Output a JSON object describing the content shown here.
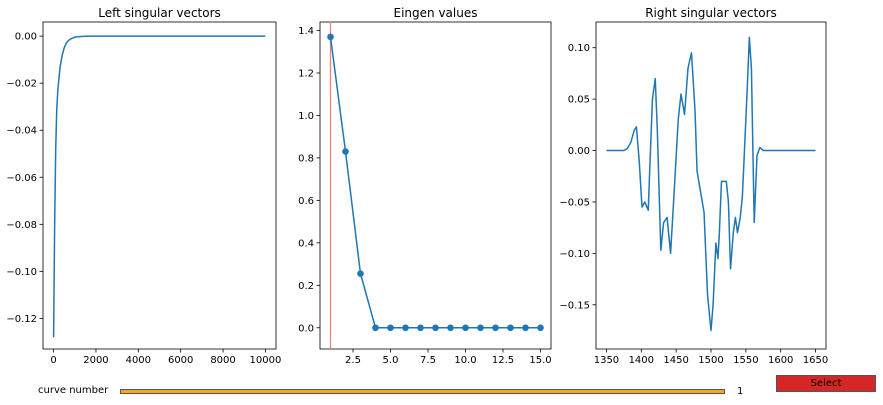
{
  "chart_data": [
    {
      "type": "line",
      "title": "Left singular vectors",
      "xlabel": "",
      "ylabel": "",
      "xlim": [
        -500,
        10500
      ],
      "ylim": [
        -0.133,
        0.006
      ],
      "xticks": [
        0,
        2000,
        4000,
        6000,
        8000,
        10000
      ],
      "xtick_labels": [
        "0",
        "2000",
        "4000",
        "6000",
        "8000",
        "10000"
      ],
      "yticks": [
        0.0,
        -0.02,
        -0.04,
        -0.06,
        -0.08,
        -0.1,
        -0.12
      ],
      "ytick_labels": [
        "0.00",
        "−0.02",
        "−0.04",
        "−0.06",
        "−0.08",
        "−0.10",
        "−0.12"
      ],
      "color": "#1f77b4",
      "series": [
        {
          "x": [
            0,
            50,
            100,
            150,
            200,
            300,
            400,
            500,
            600,
            700,
            800,
            1000,
            1200,
            1500,
            2000,
            3000,
            5000,
            7500,
            10000
          ],
          "y": [
            -0.128,
            -0.08,
            -0.048,
            -0.031,
            -0.023,
            -0.0135,
            -0.0083,
            -0.005,
            -0.003,
            -0.0019,
            -0.0012,
            -0.0005,
            -0.0002,
            -5e-05,
            0,
            0,
            0,
            0,
            0
          ]
        }
      ]
    },
    {
      "type": "line",
      "title": "Eingen values",
      "xlabel": "",
      "ylabel": "",
      "xlim": [
        0.3,
        15.7
      ],
      "ylim": [
        -0.1,
        1.44
      ],
      "xticks": [
        2.5,
        5.0,
        7.5,
        10.0,
        12.5,
        15.0
      ],
      "xtick_labels": [
        "2.5",
        "5.0",
        "7.5",
        "10.0",
        "12.5",
        "15.0"
      ],
      "yticks": [
        0.0,
        0.2,
        0.4,
        0.6,
        0.8,
        1.0,
        1.2,
        1.4
      ],
      "ytick_labels": [
        "0.0",
        "0.2",
        "0.4",
        "0.6",
        "0.8",
        "1.0",
        "1.2",
        "1.4"
      ],
      "color": "#1f77b4",
      "marker": "circle",
      "vline": {
        "x": 1,
        "color": "#f08080"
      },
      "series": [
        {
          "x": [
            1,
            2,
            3,
            4,
            5,
            6,
            7,
            8,
            9,
            10,
            11,
            12,
            13,
            14,
            15
          ],
          "y": [
            1.37,
            0.83,
            0.255,
            0,
            0,
            0,
            0,
            0,
            0,
            0,
            0,
            0,
            0,
            0,
            0
          ]
        }
      ]
    },
    {
      "type": "line",
      "title": "Right singular vectors",
      "xlabel": "",
      "ylabel": "",
      "xlim": [
        1335,
        1665
      ],
      "ylim": [
        -0.193,
        0.125
      ],
      "xticks": [
        1350,
        1400,
        1450,
        1500,
        1550,
        1600,
        1650
      ],
      "xtick_labels": [
        "1350",
        "1400",
        "1450",
        "1500",
        "1550",
        "1600",
        "1650"
      ],
      "yticks": [
        0.1,
        0.05,
        0.0,
        -0.05,
        -0.1,
        -0.15
      ],
      "ytick_labels": [
        "0.10",
        "0.05",
        "0.00",
        "−0.05",
        "−0.10",
        "−0.15"
      ],
      "color": "#1f77b4",
      "series": [
        {
          "x": [
            1350,
            1375,
            1380,
            1385,
            1390,
            1393,
            1397,
            1401,
            1405,
            1410,
            1412,
            1416,
            1420,
            1423,
            1428,
            1432,
            1437,
            1442,
            1448,
            1453,
            1457,
            1462,
            1467,
            1472,
            1477,
            1480,
            1485,
            1490,
            1495,
            1500,
            1503,
            1507,
            1510,
            1512,
            1515,
            1518,
            1522,
            1525,
            1528,
            1532,
            1535,
            1538,
            1542,
            1545,
            1548,
            1552,
            1555,
            1558,
            1562,
            1566,
            1570,
            1575,
            1578,
            1581,
            1585,
            1588,
            1591,
            1595,
            1600,
            1610,
            1650
          ],
          "y": [
            0.0,
            0.0,
            0.002,
            0.008,
            0.02,
            0.023,
            -0.01,
            -0.055,
            -0.05,
            -0.058,
            -0.02,
            0.05,
            0.07,
            0.02,
            -0.097,
            -0.07,
            -0.065,
            -0.1,
            -0.03,
            0.03,
            0.055,
            0.035,
            0.08,
            0.095,
            0.04,
            -0.02,
            -0.04,
            -0.06,
            -0.14,
            -0.175,
            -0.15,
            -0.09,
            -0.105,
            -0.08,
            -0.03,
            -0.03,
            -0.03,
            -0.05,
            -0.115,
            -0.08,
            -0.065,
            -0.08,
            -0.065,
            -0.045,
            0.0,
            0.06,
            0.11,
            0.08,
            -0.07,
            -0.005,
            0.003,
            0.0,
            0.0,
            0.0,
            0.0,
            0.0,
            0.0,
            0.0,
            0.0,
            0.0,
            0.0
          ]
        }
      ]
    }
  ],
  "slider": {
    "label": "curve number",
    "value": "1",
    "fraction": 1.0
  },
  "button": {
    "label": "Select"
  }
}
